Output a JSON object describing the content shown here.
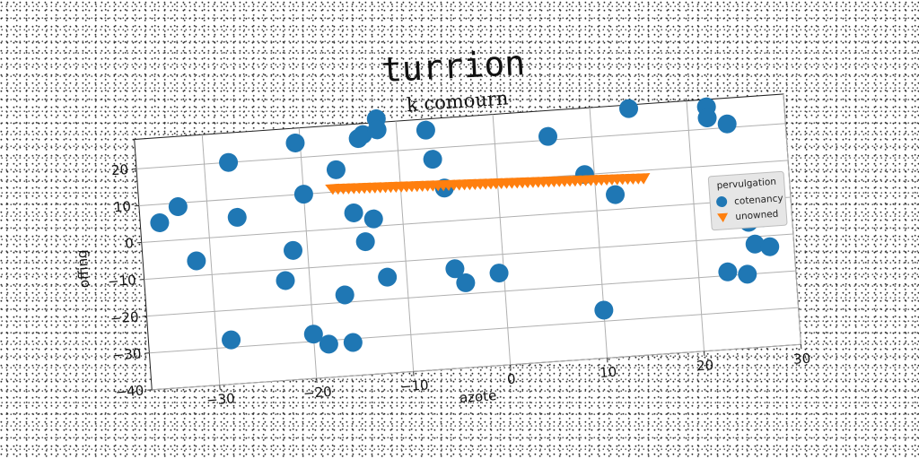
{
  "suptitle": "turrion",
  "chart_data": {
    "type": "scatter",
    "title": "k comourn",
    "xlabel": "azote",
    "ylabel": "offing",
    "xlim": [
      -37,
      30
    ],
    "ylim": [
      -40,
      28
    ],
    "xticks": [
      -30,
      -20,
      -10,
      0,
      10,
      20,
      30
    ],
    "yticks": [
      -40,
      -30,
      -20,
      -10,
      0,
      10,
      20
    ],
    "grid": true,
    "legend": {
      "title": "pervulgation",
      "location": "right"
    },
    "series": [
      {
        "name": "cotenancy",
        "marker": "circle",
        "color": "#1f77b4",
        "x": [
          -35,
          -33,
          -31.5,
          -28.5,
          -27.5,
          -27,
          -22.5,
          -21.5,
          -20.5,
          -20,
          -20,
          -18.5,
          -16.5,
          -16.5,
          -16,
          -15,
          -14,
          -14,
          -13.5,
          -13,
          -12,
          -12,
          -12,
          -7,
          -6.5,
          -5.5,
          -5,
          -4,
          -0.5,
          5.5,
          9,
          10,
          12,
          14,
          22,
          22,
          24,
          25.5,
          26,
          27,
          27.5,
          23,
          25
        ],
        "y": [
          5,
          9,
          -6,
          -28,
          20,
          5,
          -13,
          -5,
          24,
          10,
          -28,
          -31,
          -18,
          16,
          -31,
          4,
          24,
          -4,
          25,
          2,
          29,
          26,
          -14,
          25,
          17,
          9,
          -13,
          -17,
          -15,
          21,
          10,
          -27,
          4,
          27,
          26,
          23,
          21,
          -6,
          -12,
          -5,
          -13,
          -19,
          -20
        ],
        "size": "large"
      },
      {
        "name": "unowned",
        "marker": "triangle-down",
        "color": "#ff7f0e",
        "x_range": [
          -17,
          15
        ],
        "y_range": [
          11,
          8
        ],
        "count": 60
      }
    ]
  }
}
